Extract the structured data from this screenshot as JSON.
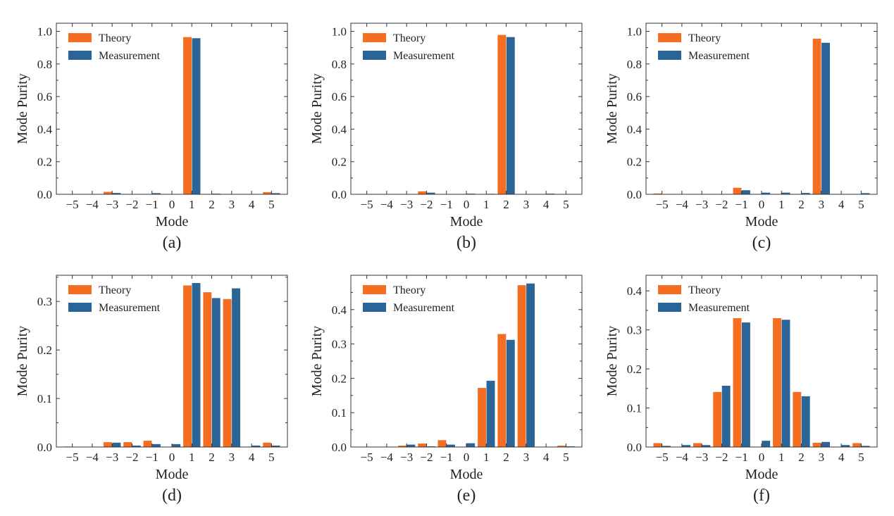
{
  "chart_data": [
    {
      "type": "bar",
      "panel_label": "(a)",
      "xlabel": "Mode",
      "ylabel": "Mode Purity",
      "categories": [
        -5,
        -4,
        -3,
        -2,
        -1,
        0,
        1,
        2,
        3,
        4,
        5
      ],
      "ylim": [
        0,
        1.05
      ],
      "yticks": [
        0.0,
        0.2,
        0.4,
        0.6,
        0.8,
        1.0
      ],
      "ytick_labels": [
        "0.0",
        "0.2",
        "0.4",
        "0.6",
        "0.8",
        "1.0"
      ],
      "legend": "top-left",
      "series": [
        {
          "name": "Theory",
          "color": "#f46d20",
          "values": [
            0,
            0,
            0.015,
            0,
            0,
            0,
            0.965,
            0,
            0,
            0,
            0.013
          ]
        },
        {
          "name": "Measurement",
          "color": "#2b6597",
          "values": [
            0,
            0,
            0.008,
            0,
            0.007,
            0.002,
            0.958,
            0.004,
            0.002,
            0,
            0.007
          ]
        }
      ]
    },
    {
      "type": "bar",
      "panel_label": "(b)",
      "xlabel": "Mode",
      "ylabel": "Mode Purity",
      "categories": [
        -5,
        -4,
        -3,
        -2,
        -1,
        0,
        1,
        2,
        3,
        4,
        5
      ],
      "ylim": [
        0,
        1.05
      ],
      "yticks": [
        0.0,
        0.2,
        0.4,
        0.6,
        0.8,
        1.0
      ],
      "ytick_labels": [
        "0.0",
        "0.2",
        "0.4",
        "0.6",
        "0.8",
        "1.0"
      ],
      "legend": "top-left",
      "series": [
        {
          "name": "Theory",
          "color": "#f46d20",
          "values": [
            0,
            0,
            0,
            0.018,
            0,
            0,
            0,
            0.978,
            0,
            0,
            0
          ]
        },
        {
          "name": "Measurement",
          "color": "#2b6597",
          "values": [
            0,
            0,
            0,
            0.01,
            0,
            0.004,
            0.003,
            0.965,
            0,
            0.004,
            0
          ]
        }
      ]
    },
    {
      "type": "bar",
      "panel_label": "(c)",
      "xlabel": "Mode",
      "ylabel": "Mode Purity",
      "categories": [
        -5,
        -4,
        -3,
        -2,
        -1,
        0,
        1,
        2,
        3,
        4,
        5
      ],
      "ylim": [
        0,
        1.05
      ],
      "yticks": [
        0.0,
        0.2,
        0.4,
        0.6,
        0.8,
        1.0
      ],
      "ytick_labels": [
        "0.0",
        "0.2",
        "0.4",
        "0.6",
        "0.8",
        "1.0"
      ],
      "legend": "top-left",
      "series": [
        {
          "name": "Theory",
          "color": "#f46d20",
          "values": [
            0.005,
            0,
            0,
            0,
            0.04,
            0,
            0,
            0,
            0.955,
            0,
            0
          ]
        },
        {
          "name": "Measurement",
          "color": "#2b6597",
          "values": [
            0,
            0,
            0,
            0,
            0.025,
            0.01,
            0.01,
            0.008,
            0.93,
            0,
            0.007
          ]
        }
      ]
    },
    {
      "type": "bar",
      "panel_label": "(d)",
      "xlabel": "Mode",
      "ylabel": "Mode Purity",
      "categories": [
        -5,
        -4,
        -3,
        -2,
        -1,
        0,
        1,
        2,
        3,
        4,
        5
      ],
      "ylim": [
        0,
        0.354
      ],
      "yticks": [
        0.0,
        0.1,
        0.2,
        0.3
      ],
      "ytick_labels": [
        "0.0",
        "0.1",
        "0.2",
        "0.3"
      ],
      "legend": "top-left",
      "series": [
        {
          "name": "Theory",
          "color": "#f46d20",
          "values": [
            0.001,
            0,
            0.01,
            0.01,
            0.013,
            0,
            0.333,
            0.319,
            0.305,
            0,
            0.009
          ]
        },
        {
          "name": "Measurement",
          "color": "#2b6597",
          "values": [
            0,
            0,
            0.009,
            0.003,
            0.006,
            0.006,
            0.338,
            0.307,
            0.327,
            0.003,
            0.003
          ]
        }
      ]
    },
    {
      "type": "bar",
      "panel_label": "(e)",
      "xlabel": "Mode",
      "ylabel": "Mode Purity",
      "categories": [
        -5,
        -4,
        -3,
        -2,
        -1,
        0,
        1,
        2,
        3,
        4,
        5
      ],
      "ylim": [
        0,
        0.5
      ],
      "yticks": [
        0.0,
        0.1,
        0.2,
        0.3,
        0.4
      ],
      "ytick_labels": [
        "0.0",
        "0.1",
        "0.2",
        "0.3",
        "0.4"
      ],
      "legend": "top-left",
      "series": [
        {
          "name": "Theory",
          "color": "#f46d20",
          "values": [
            0.001,
            0,
            0.004,
            0.01,
            0.02,
            0,
            0.172,
            0.329,
            0.471,
            0,
            0.004
          ]
        },
        {
          "name": "Measurement",
          "color": "#2b6597",
          "values": [
            0,
            0,
            0.007,
            0.002,
            0.007,
            0.011,
            0.193,
            0.312,
            0.476,
            0.001,
            0.002
          ]
        }
      ]
    },
    {
      "type": "bar",
      "panel_label": "(f)",
      "xlabel": "Mode",
      "ylabel": "Mode Purity",
      "categories": [
        -5,
        -4,
        -3,
        -2,
        -1,
        0,
        1,
        2,
        3,
        4,
        5
      ],
      "ylim": [
        0,
        0.44
      ],
      "yticks": [
        0.0,
        0.1,
        0.2,
        0.3,
        0.4
      ],
      "ytick_labels": [
        "0.0",
        "0.1",
        "0.2",
        "0.3",
        "0.4"
      ],
      "legend": "top-left",
      "series": [
        {
          "name": "Theory",
          "color": "#f46d20",
          "values": [
            0.01,
            0,
            0.01,
            0.141,
            0.33,
            0,
            0.33,
            0.141,
            0.011,
            0,
            0.01
          ]
        },
        {
          "name": "Measurement",
          "color": "#2b6597",
          "values": [
            0.003,
            0.005,
            0.005,
            0.157,
            0.319,
            0.016,
            0.326,
            0.13,
            0.013,
            0.005,
            0.003
          ]
        }
      ]
    }
  ]
}
